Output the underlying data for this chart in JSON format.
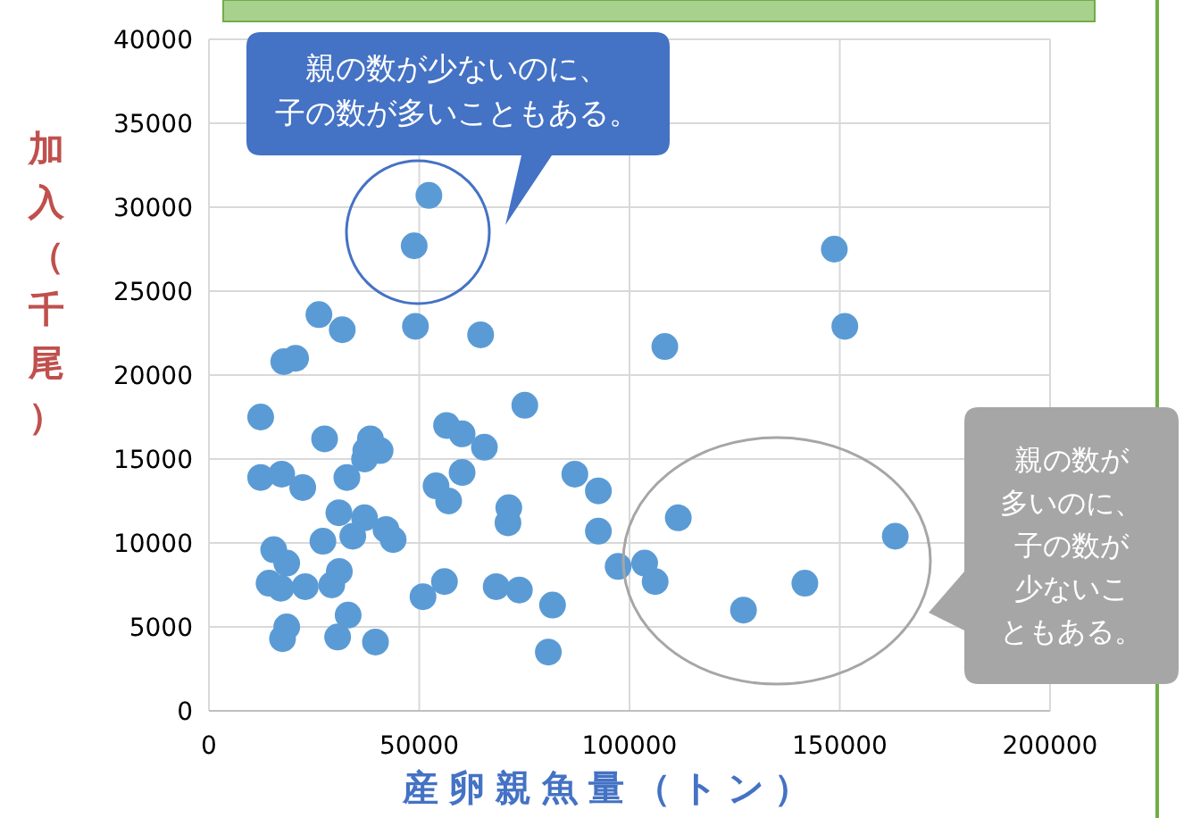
{
  "chart_data": {
    "type": "scatter",
    "xlabel": "産卵親魚量（トン）",
    "ylabel": "加入（千尾）",
    "x": [
      12300,
      26150,
      31700,
      49100,
      64600,
      17800,
      20600,
      48800,
      52300,
      27500,
      38400,
      37300,
      40700,
      37000,
      12300,
      17300,
      22300,
      32800,
      56500,
      60200,
      65500,
      75100,
      60200,
      54000,
      57000,
      71300,
      71100,
      30900,
      37000,
      34200,
      42100,
      43800,
      27100,
      15400,
      18500,
      14300,
      17100,
      22900,
      29200,
      31000,
      50900,
      56000,
      68300,
      73800,
      81700,
      33100,
      30600,
      18500,
      17500,
      39600,
      80700,
      108400,
      148700,
      151200,
      87000,
      92600,
      92600,
      111600,
      97300,
      103600,
      106100,
      127100,
      141700,
      163200
    ],
    "values": [
      17500,
      23600,
      22700,
      22900,
      22400,
      20800,
      21000,
      27700,
      30700,
      16200,
      16200,
      15500,
      15500,
      15000,
      13900,
      14100,
      13300,
      13900,
      17000,
      16500,
      15700,
      18200,
      14200,
      13400,
      12500,
      12100,
      11200,
      11800,
      11500,
      10400,
      10800,
      10200,
      10100,
      9600,
      8800,
      7600,
      7300,
      7400,
      7500,
      8300,
      6800,
      7700,
      7400,
      7200,
      6300,
      5700,
      4400,
      5000,
      4300,
      4100,
      3500,
      21700,
      27500,
      22900,
      14100,
      13100,
      10700,
      11500,
      8600,
      8800,
      7700,
      6000,
      7600,
      10400
    ],
    "color": "#5b9bd5",
    "marker": "circle",
    "xlim": [
      0,
      200000
    ],
    "xticks": [
      0,
      50000,
      100000,
      150000,
      200000
    ],
    "ylim": [
      0,
      40000
    ],
    "yticks": [
      0,
      5000,
      10000,
      15000,
      20000,
      25000,
      30000,
      35000,
      40000
    ],
    "grid": true,
    "annotations": [
      "親の数が少ないのに、子の数が多いこともある。",
      "親の数が多いのに、子の数が少ないこともある。"
    ]
  }
}
